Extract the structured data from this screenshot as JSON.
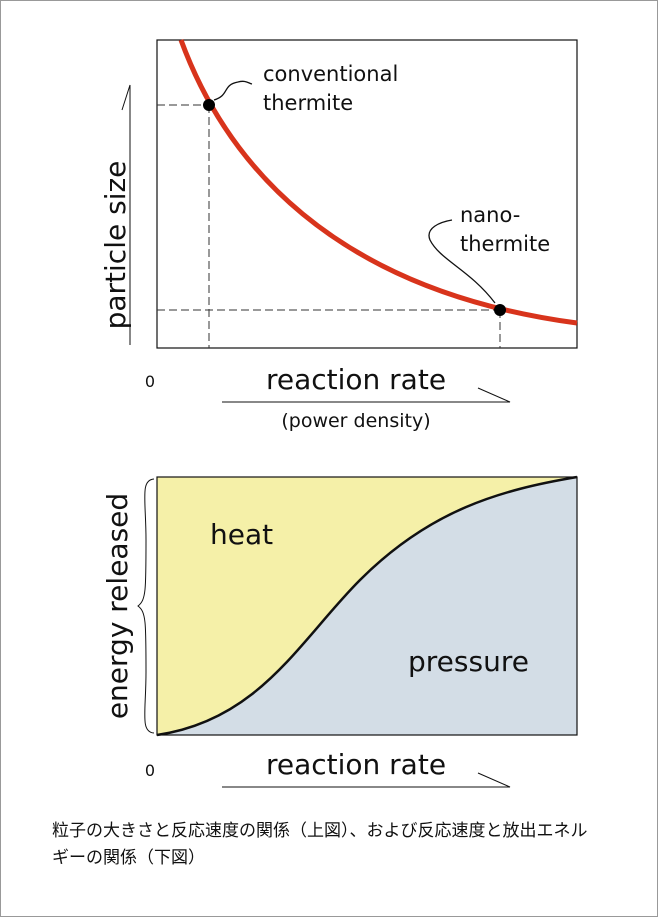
{
  "top": {
    "y_label": "particle size",
    "x_label": "reaction rate",
    "x_sublabel": "(power density)",
    "origin": "0",
    "annotations": [
      [
        "conventional",
        "thermite"
      ],
      [
        "nano-",
        "thermite"
      ]
    ]
  },
  "bottom": {
    "y_label": "energy released",
    "x_label": "reaction rate",
    "origin": "0",
    "regions": [
      "heat",
      "pressure"
    ]
  },
  "caption": [
    "粒子の大きさと反応速度の関係（上図）、および反応速度と放出エネル",
    "ギーの関係（下図）"
  ]
}
